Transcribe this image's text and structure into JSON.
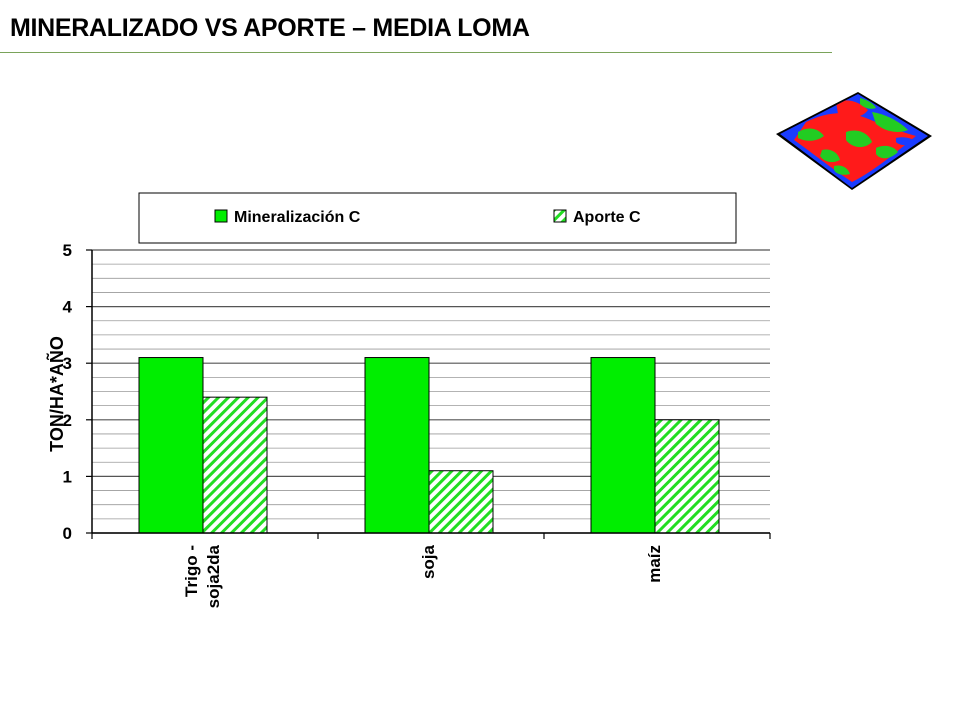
{
  "slide": {
    "title": "MINERALIZADO VS APORTE – MEDIA LOMA"
  },
  "chart_data": {
    "type": "bar",
    "title": "",
    "xlabel": "",
    "ylabel": "TON/HA*AÑO",
    "ylim": [
      0,
      5
    ],
    "yticks": [
      0,
      1,
      2,
      3,
      4,
      5
    ],
    "minor_grid_step": 0.25,
    "grid": true,
    "legend_position": "top",
    "categories": [
      [
        "Trigo -",
        "soja2da"
      ],
      [
        "soja"
      ],
      [
        "maíz"
      ]
    ],
    "series": [
      {
        "name": "Mineralización C",
        "values": [
          3.1,
          3.1,
          3.1
        ],
        "color": "#00ee00",
        "pattern": "solid"
      },
      {
        "name": "Aporte C",
        "values": [
          2.4,
          1.1,
          2.0
        ],
        "color": "#00ee00",
        "pattern": "hatched"
      }
    ]
  },
  "decor": {
    "map_icon": "field-map-thumbnail-icon"
  }
}
